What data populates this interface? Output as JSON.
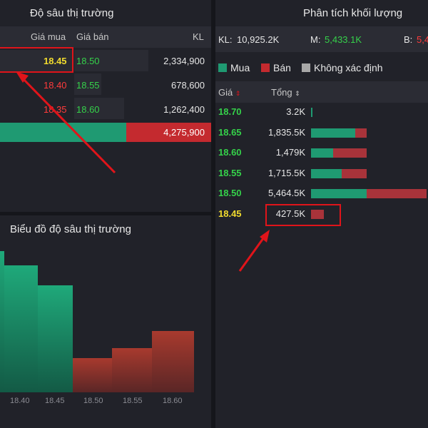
{
  "colors": {
    "buy": "#1f9a72",
    "sell": "#a8333a",
    "up": "#35d14a",
    "down": "#ff3b3b",
    "ref": "#f2dc2e",
    "unknown": "#b0b0b0",
    "annotation": "#e0141a"
  },
  "depth": {
    "title": "Độ sâu thị trường",
    "headers": {
      "bid": "Giá mua",
      "ask": "Giá bán",
      "vol": "KL"
    },
    "rows": [
      {
        "bid": "18.45",
        "ask": "18.50",
        "vol": "2,334,900"
      },
      {
        "bid": "18.40",
        "ask": "18.55",
        "vol": "678,600"
      },
      {
        "bid": "18.35",
        "ask": "18.60",
        "vol": "1,262,400"
      }
    ],
    "total": "4,275,900"
  },
  "depth_chart": {
    "title": "Biểu đồ độ sâu thị trường",
    "ticks": [
      "18.40",
      "18.45",
      "18.50",
      "18.55",
      "18.60"
    ]
  },
  "volume": {
    "title": "Phân tích khối lượng",
    "kl_label": "KL:",
    "kl_value": "10,925.2K",
    "m_label": "M:",
    "m_value": "5,433.1K",
    "b_label": "B:",
    "b_value": "5,4",
    "legend": {
      "buy": "Mua",
      "sell": "Bán",
      "unknown": "Không xác định"
    },
    "col_price": "Giá",
    "col_total": "Tổng",
    "rows": [
      {
        "price": "18.70",
        "total": "3.2K",
        "buy_frac": 0.5,
        "sell_frac": 0.0
      },
      {
        "price": "18.65",
        "total": "1,835.5K",
        "buy_frac": 0.8,
        "sell_frac": 0.2
      },
      {
        "price": "18.60",
        "total": "1,479K",
        "buy_frac": 0.4,
        "sell_frac": 0.6
      },
      {
        "price": "18.55",
        "total": "1,715.5K",
        "buy_frac": 0.55,
        "sell_frac": 0.45
      },
      {
        "price": "18.50",
        "total": "5,464.5K",
        "buy_frac": 0.48,
        "sell_frac": 0.52
      },
      {
        "price": "18.45",
        "total": "427.5K",
        "buy_frac": 0.0,
        "sell_frac": 1.0
      }
    ]
  }
}
